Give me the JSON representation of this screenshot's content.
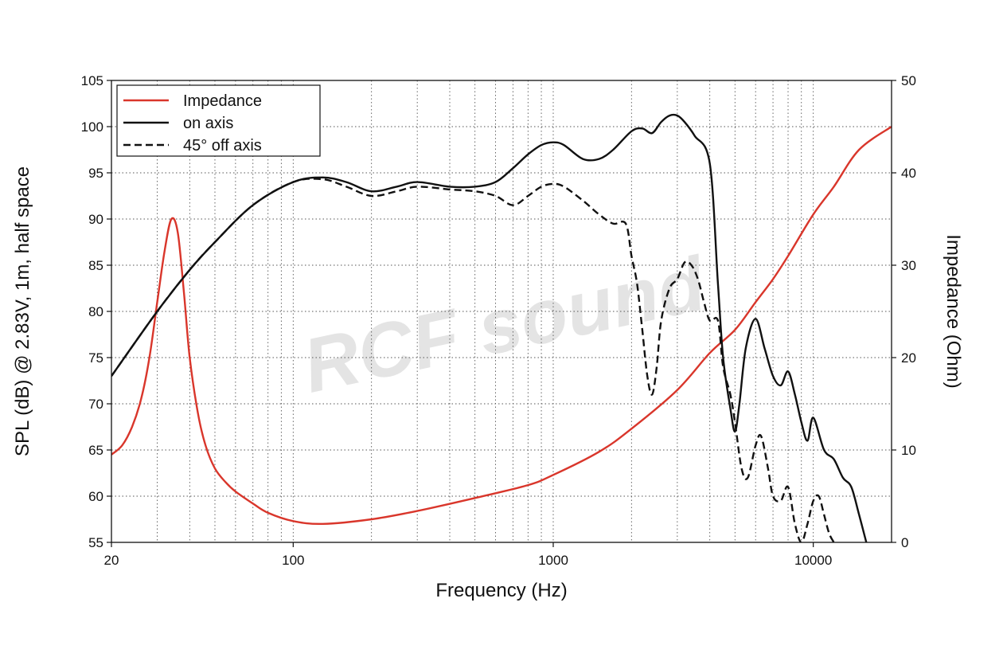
{
  "chart_data": {
    "type": "line",
    "xlabel": "Frequency (Hz)",
    "ylabel": "SPL (dB) @ 2.83V, 1m, half space",
    "y2label": "Impedance (Ohm)",
    "xscale": "log",
    "xlim": [
      20,
      20000
    ],
    "ylim": [
      55,
      105
    ],
    "y2lim": [
      0,
      50
    ],
    "xticks": [
      20,
      100,
      1000,
      10000
    ],
    "yticks": [
      55,
      60,
      65,
      70,
      75,
      80,
      85,
      90,
      95,
      100,
      105
    ],
    "y2ticks": [
      0,
      10,
      20,
      30,
      40,
      50
    ],
    "grid": true,
    "legend_position": "top-left",
    "watermark": "RCF sound",
    "colors": {
      "impedance": "#d9362b",
      "spl": "#111111"
    },
    "series": [
      {
        "name": "Impedance",
        "axis": "right",
        "style": "solid",
        "color": "#d9362b",
        "x": [
          20,
          22,
          24,
          26,
          28,
          30,
          32,
          34,
          36,
          38,
          40,
          43,
          46,
          50,
          55,
          60,
          70,
          80,
          100,
          130,
          200,
          300,
          500,
          800,
          1000,
          1500,
          2000,
          3000,
          4000,
          5000,
          6000,
          7000,
          8000,
          10000,
          12000,
          15000,
          20000
        ],
        "y": [
          9.5,
          10.5,
          12.5,
          15.5,
          20,
          26,
          31.5,
          35,
          33.5,
          27,
          20,
          14,
          10.5,
          8,
          6.5,
          5.5,
          4.2,
          3.2,
          2.3,
          2.0,
          2.5,
          3.4,
          4.8,
          6.2,
          7.3,
          9.8,
          12.3,
          16.5,
          20.5,
          23,
          26,
          28.5,
          31,
          35.5,
          38.5,
          42.5,
          45
        ]
      },
      {
        "name": "on axis",
        "axis": "left",
        "style": "solid",
        "color": "#111111",
        "x": [
          20,
          30,
          40,
          50,
          70,
          100,
          130,
          160,
          200,
          250,
          300,
          400,
          500,
          600,
          700,
          800,
          900,
          1000,
          1100,
          1300,
          1500,
          1700,
          2000,
          2200,
          2400,
          2600,
          2800,
          3000,
          3200,
          3500,
          4000,
          4300,
          4500,
          4800,
          5000,
          5200,
          5500,
          6000,
          6500,
          7000,
          7500,
          8000,
          8500,
          9000,
          9500,
          10000,
          11000,
          12000,
          13000,
          14000,
          15000,
          16000
        ],
        "y": [
          73,
          80,
          84.5,
          87.5,
          91.5,
          94,
          94.5,
          94,
          93,
          93.5,
          94,
          93.5,
          93.5,
          94,
          95.5,
          97,
          98,
          98.3,
          98,
          96.5,
          96.5,
          97.5,
          99.5,
          99.8,
          99.3,
          100.5,
          101.2,
          101.2,
          100.5,
          99,
          96,
          83,
          75,
          69.5,
          67,
          70,
          76,
          79.2,
          76,
          73,
          72,
          73.5,
          71,
          68,
          66,
          68.5,
          65,
          64,
          62,
          61,
          58,
          55
        ]
      },
      {
        "name": "45° off axis",
        "axis": "left",
        "style": "dashed",
        "color": "#111111",
        "x": [
          20,
          30,
          40,
          50,
          70,
          100,
          130,
          160,
          200,
          250,
          300,
          400,
          500,
          600,
          700,
          800,
          900,
          1000,
          1100,
          1300,
          1500,
          1700,
          1900,
          2000,
          2100,
          2200,
          2300,
          2400,
          2500,
          2600,
          2800,
          3000,
          3200,
          3400,
          3600,
          3800,
          4000,
          4300,
          4500,
          4800,
          5000,
          5300,
          5600,
          6000,
          6300,
          6700,
          7000,
          7500,
          8000,
          8500,
          9000,
          9500,
          10000,
          10500,
          11000,
          11500,
          12000
        ],
        "y": [
          73,
          80,
          84.5,
          87.5,
          91.5,
          94,
          94.3,
          93.5,
          92.5,
          93,
          93.5,
          93.2,
          93,
          92.5,
          91.5,
          92.5,
          93.5,
          93.8,
          93.5,
          92,
          90.5,
          89.5,
          89.5,
          86,
          83,
          78,
          73,
          71,
          74,
          79,
          82.5,
          83.5,
          85.3,
          85,
          83.5,
          81,
          79,
          79,
          74,
          71,
          68,
          63,
          62,
          65.5,
          66.5,
          63,
          60,
          59.5,
          61,
          57,
          55,
          57,
          59.5,
          60,
          58,
          56,
          55
        ]
      }
    ]
  }
}
